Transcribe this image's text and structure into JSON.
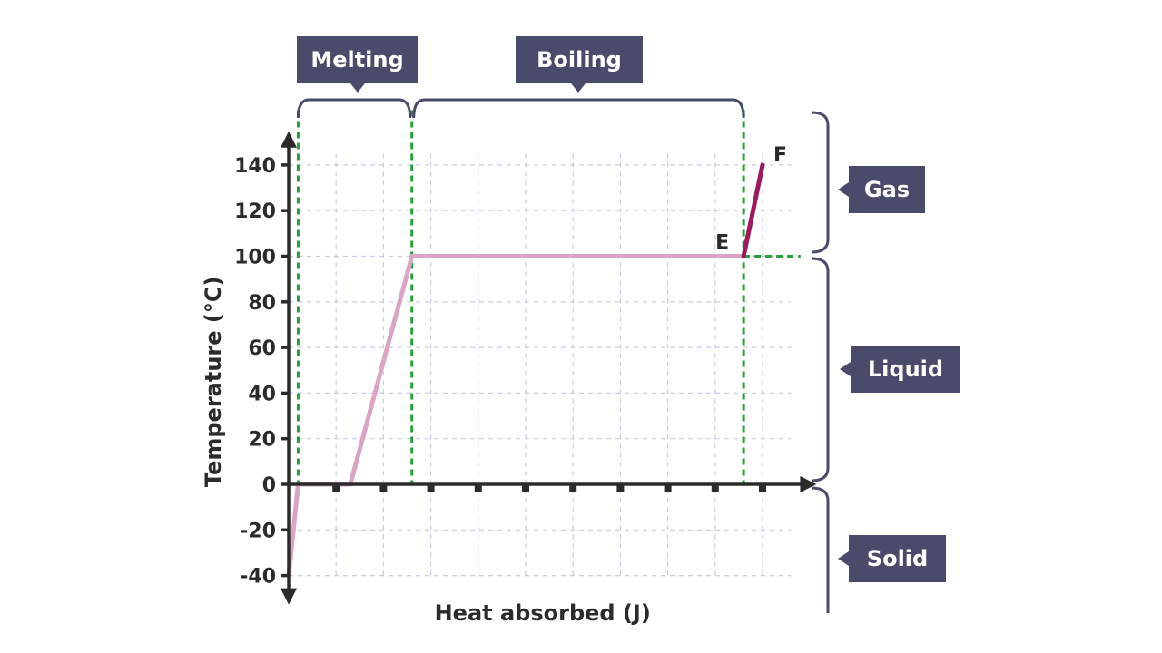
{
  "chart_data": {
    "type": "line",
    "xlabel": "Heat absorbed (J)",
    "ylabel": "Temperature (°C)",
    "ylim": [
      -40,
      150
    ],
    "y_ticks": [
      -40,
      -20,
      0,
      20,
      40,
      60,
      80,
      100,
      120,
      140
    ],
    "y_tick_labels": [
      "-40",
      "-20",
      "0",
      "20",
      "40",
      "60",
      "80",
      "100",
      "120",
      "140"
    ],
    "xlim": [
      0,
      11
    ],
    "x_ticks_marked": [
      1,
      2,
      3,
      4,
      5,
      6,
      7,
      8,
      9,
      10
    ],
    "grid": true,
    "series": [
      {
        "x": [
          0,
          0.2,
          1.3,
          2.6,
          9.6
        ],
        "y": [
          -40,
          0,
          0,
          100,
          100
        ],
        "color": "#d9a5c3"
      },
      {
        "x": [
          9.6,
          10.0
        ],
        "y": [
          100,
          140
        ],
        "color": "#9b1c5e"
      }
    ],
    "point_labels": [
      {
        "text": "E",
        "x": 9.6,
        "y": 100
      },
      {
        "text": "F",
        "x": 10.0,
        "y": 140
      }
    ],
    "phase_change_lines": [
      {
        "x": 0.2,
        "y_top": 150
      },
      {
        "x": 2.6,
        "y_top": 150
      },
      {
        "x": 9.6,
        "y_top": 150
      }
    ],
    "gas_line": {
      "from_x": 9.6,
      "to_x": 10.8,
      "y": 100
    },
    "regions_top": [
      {
        "label": "Melting",
        "from_x": 0.2,
        "to_x": 2.6
      },
      {
        "label": "Boiling",
        "from_x": 2.6,
        "to_x": 9.6
      }
    ],
    "regions_right": [
      {
        "label": "Gas",
        "from_y": 100,
        "to_y": 150
      },
      {
        "label": "Liquid",
        "from_y": 0,
        "to_y": 100
      },
      {
        "label": "Solid",
        "from_y": -40,
        "to_y": 0
      }
    ],
    "colors": {
      "axis": "#2b2b2b",
      "grid": "#c8cde0",
      "dashed": "#2a9d3c",
      "bracket": "#4a4a6a",
      "tag_bg": "#4a4a6a",
      "heating": "#d9a5c3",
      "gas_segment": "#9b1c5e"
    }
  }
}
